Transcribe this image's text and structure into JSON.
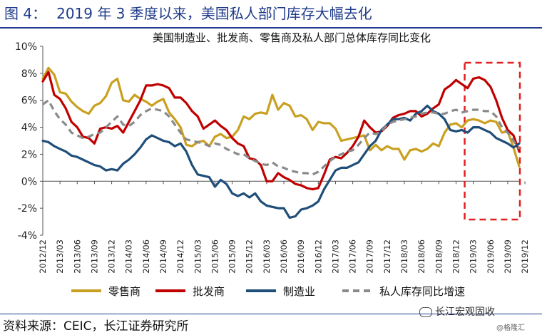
{
  "figure": {
    "label": "图 4：",
    "title": "2019 年 3 季度以来，美国私人部门库存大幅去化",
    "source": "资料来源：CEIC，长江证券研究所",
    "watermark": "长江宏观固收",
    "watermark2": "@格隆汇"
  },
  "chart_data": {
    "type": "line",
    "title": "美国制造业、批发商、零售商及私人部门总体库存同比变化",
    "ylim": [
      -4,
      10
    ],
    "yticks": [
      "-4%",
      "-2%",
      "0%",
      "2%",
      "4%",
      "6%",
      "8%",
      "10%"
    ],
    "ytick_values": [
      -4,
      -2,
      0,
      2,
      4,
      6,
      8,
      10
    ],
    "xticks": [
      "2012/12",
      "2013/03",
      "2013/06",
      "2013/09",
      "2013/12",
      "2014/03",
      "2014/06",
      "2014/09",
      "2014/12",
      "2015/03",
      "2015/06",
      "2015/09",
      "2015/12",
      "2016/03",
      "2016/06",
      "2016/09",
      "2016/12",
      "2017/03",
      "2017/06",
      "2017/09",
      "2017/12",
      "2018/03",
      "2018/06",
      "2018/09",
      "2018/12",
      "2019/03",
      "2019/06",
      "2019/09",
      "2019/12"
    ],
    "grid": false,
    "legend_position": "bottom",
    "highlight": {
      "from": "2019/02",
      "to": "2019/12",
      "style": "red dashed box"
    },
    "series": [
      {
        "name": "零售商",
        "color": "#c9a020",
        "dash": false,
        "values": [
          7.6,
          8.4,
          7.9,
          6.6,
          6.5,
          5.9,
          5.5,
          5.2,
          5.0,
          5.6,
          5.8,
          6.3,
          7.3,
          7.6,
          6.0,
          5.9,
          6.4,
          6.1,
          5.9,
          5.6,
          5.9,
          6.1,
          5.1,
          4.6,
          4.0,
          2.7,
          2.6,
          2.9,
          3.0,
          2.6,
          3.3,
          3.5,
          3.2,
          3.3,
          3.8,
          4.8,
          4.6,
          5.0,
          5.1,
          5.0,
          6.4,
          5.3,
          5.8,
          5.6,
          4.8,
          4.9,
          4.6,
          3.8,
          4.4,
          4.3,
          4.3,
          3.9,
          3.0,
          3.1,
          3.2,
          3.3,
          3.4,
          2.3,
          2.7,
          2.3,
          2.6,
          2.4,
          2.4,
          1.6,
          2.3,
          2.4,
          2.2,
          2.4,
          2.8,
          2.6,
          3.6,
          4.2,
          4.3,
          4.0,
          4.5,
          4.6,
          4.5,
          4.3,
          4.5,
          4.4,
          3.6,
          3.7,
          2.5,
          1.1
        ]
      },
      {
        "name": "批发商",
        "color": "#c00000",
        "dash": false,
        "values": [
          7.4,
          8.1,
          6.4,
          6.1,
          5.4,
          4.4,
          4.0,
          3.3,
          3.2,
          2.8,
          3.9,
          4.0,
          3.9,
          4.1,
          3.6,
          4.4,
          5.2,
          6.0,
          7.1,
          7.1,
          7.2,
          7.1,
          6.9,
          6.2,
          6.2,
          5.8,
          5.2,
          4.8,
          3.9,
          4.2,
          4.5,
          4.1,
          3.8,
          3.2,
          2.8,
          2.6,
          1.7,
          1.6,
          1.2,
          0.0,
          0.0,
          0.6,
          0.3,
          0.1,
          -0.2,
          -0.3,
          -0.5,
          -0.6,
          -0.5,
          0.5,
          1.6,
          1.8,
          1.7,
          2.1,
          2.6,
          3.3,
          4.5,
          4.0,
          3.6,
          3.7,
          4.1,
          4.7,
          4.9,
          5.0,
          5.2,
          5.2,
          4.8,
          5.0,
          5.4,
          5.7,
          6.8,
          7.1,
          7.5,
          7.2,
          6.9,
          7.6,
          7.7,
          7.5,
          7.0,
          6.0,
          4.7,
          3.8,
          3.4,
          2.2
        ]
      },
      {
        "name": "制造业",
        "color": "#1f4e79",
        "dash": false,
        "values": [
          3.0,
          2.9,
          2.6,
          2.4,
          2.2,
          1.9,
          1.8,
          1.6,
          1.4,
          1.2,
          1.1,
          0.8,
          0.9,
          0.8,
          1.3,
          1.6,
          2.0,
          2.5,
          3.1,
          3.4,
          3.2,
          3.0,
          2.9,
          2.6,
          2.8,
          2.2,
          1.2,
          0.5,
          0.4,
          0.3,
          -0.4,
          0.1,
          -0.2,
          -0.9,
          -1.1,
          -0.9,
          -1.2,
          -0.9,
          -1.5,
          -1.8,
          -1.9,
          -2.0,
          -2.0,
          -2.7,
          -2.6,
          -2.1,
          -2.0,
          -1.8,
          -1.5,
          -0.6,
          0.1,
          0.8,
          1.0,
          1.0,
          1.2,
          1.4,
          2.0,
          2.6,
          3.0,
          3.8,
          4.2,
          4.6,
          4.6,
          4.7,
          4.5,
          5.0,
          5.2,
          5.6,
          5.2,
          5.0,
          4.6,
          3.8,
          3.7,
          3.8,
          3.6,
          4.0,
          4.0,
          3.8,
          3.6,
          3.2,
          3.0,
          2.8,
          2.5,
          2.8
        ]
      },
      {
        "name": "私人库存同比增速",
        "color": "#8a8a8a",
        "dash": true,
        "values": [
          5.7,
          6.0,
          5.2,
          4.6,
          4.2,
          3.6,
          3.4,
          3.2,
          3.3,
          3.5,
          3.6,
          4.0,
          4.4,
          4.8,
          4.2,
          4.1,
          4.4,
          4.9,
          5.2,
          5.4,
          5.3,
          5.2,
          4.8,
          4.2,
          3.6,
          3.1,
          3.0,
          2.9,
          2.8,
          2.6,
          2.8,
          2.7,
          2.4,
          2.2,
          2.0,
          2.0,
          1.7,
          1.5,
          1.3,
          1.2,
          1.4,
          1.1,
          1.0,
          0.8,
          0.7,
          0.6,
          0.6,
          0.5,
          0.7,
          1.1,
          1.5,
          1.8,
          2.0,
          2.2,
          2.3,
          2.7,
          3.2,
          3.6,
          3.5,
          3.7,
          4.2,
          4.4,
          4.5,
          4.6,
          4.7,
          4.8,
          5.0,
          5.1,
          5.1,
          5.0,
          5.0,
          5.2,
          5.3,
          5.1,
          5.2,
          5.3,
          5.3,
          5.2,
          5.2,
          4.8,
          4.0,
          3.6,
          3.0,
          2.4
        ]
      }
    ]
  }
}
